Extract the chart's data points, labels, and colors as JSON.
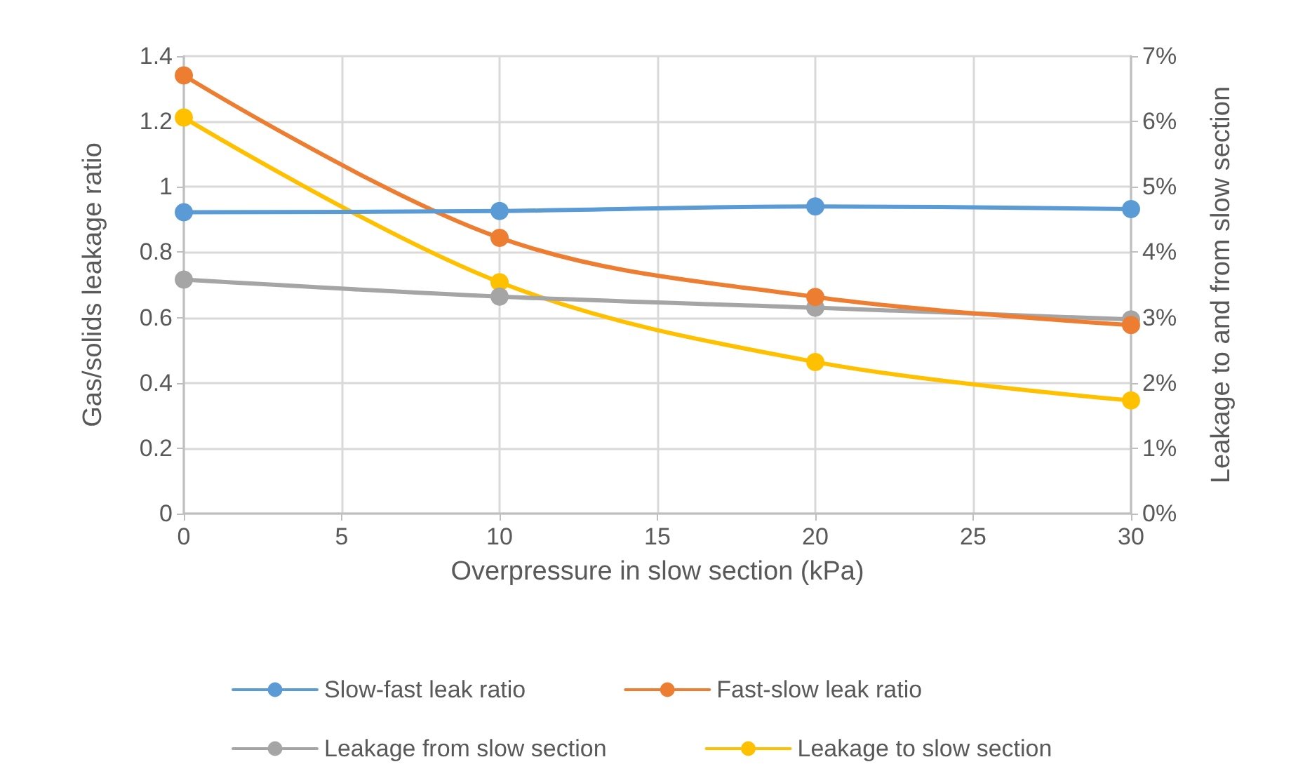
{
  "chart_data": {
    "type": "line",
    "xlabel": "Overpressure in slow section (kPa)",
    "ylabel": "Gas/solids leakage ratio",
    "y2label": "Leakage to and from slow section",
    "x": [
      0,
      10,
      20,
      30
    ],
    "series": [
      {
        "name": "Slow-fast leak ratio",
        "color": "#5b9bd5",
        "values": [
          0.922,
          0.926,
          0.94,
          0.932
        ]
      },
      {
        "name": "Fast-slow leak ratio",
        "color": "#ed7d31",
        "values": [
          1.341,
          0.844,
          0.663,
          0.577
        ]
      },
      {
        "name": "Leakage from slow section",
        "color": "#a5a5a5",
        "axis": "y2",
        "values": [
          3.58,
          3.32,
          3.15,
          2.97
        ]
      },
      {
        "name": "Leakage to slow section",
        "color": "#ffc000",
        "axis": "y2",
        "values": [
          6.06,
          3.54,
          2.32,
          1.73
        ]
      }
    ],
    "xlim": [
      0,
      30
    ],
    "xticks": [
      0,
      5,
      10,
      15,
      20,
      25,
      30
    ],
    "ylim": [
      0,
      1.4
    ],
    "yticks": [
      0,
      0.2,
      0.4,
      0.6,
      0.8,
      1,
      1.2,
      1.4
    ],
    "y2lim": [
      0,
      7
    ],
    "y2ticks": [
      {
        "value": 0,
        "label": "0%"
      },
      {
        "value": 1,
        "label": "1%"
      },
      {
        "value": 2,
        "label": "2%"
      },
      {
        "value": 3,
        "label": "3%"
      },
      {
        "value": 4,
        "label": "4%"
      },
      {
        "value": 5,
        "label": "5%"
      },
      {
        "value": 6,
        "label": "6%"
      },
      {
        "value": 7,
        "label": "7%"
      }
    ],
    "grid": true,
    "legend": "bottom",
    "marker": "circle",
    "line_style": "solid"
  }
}
